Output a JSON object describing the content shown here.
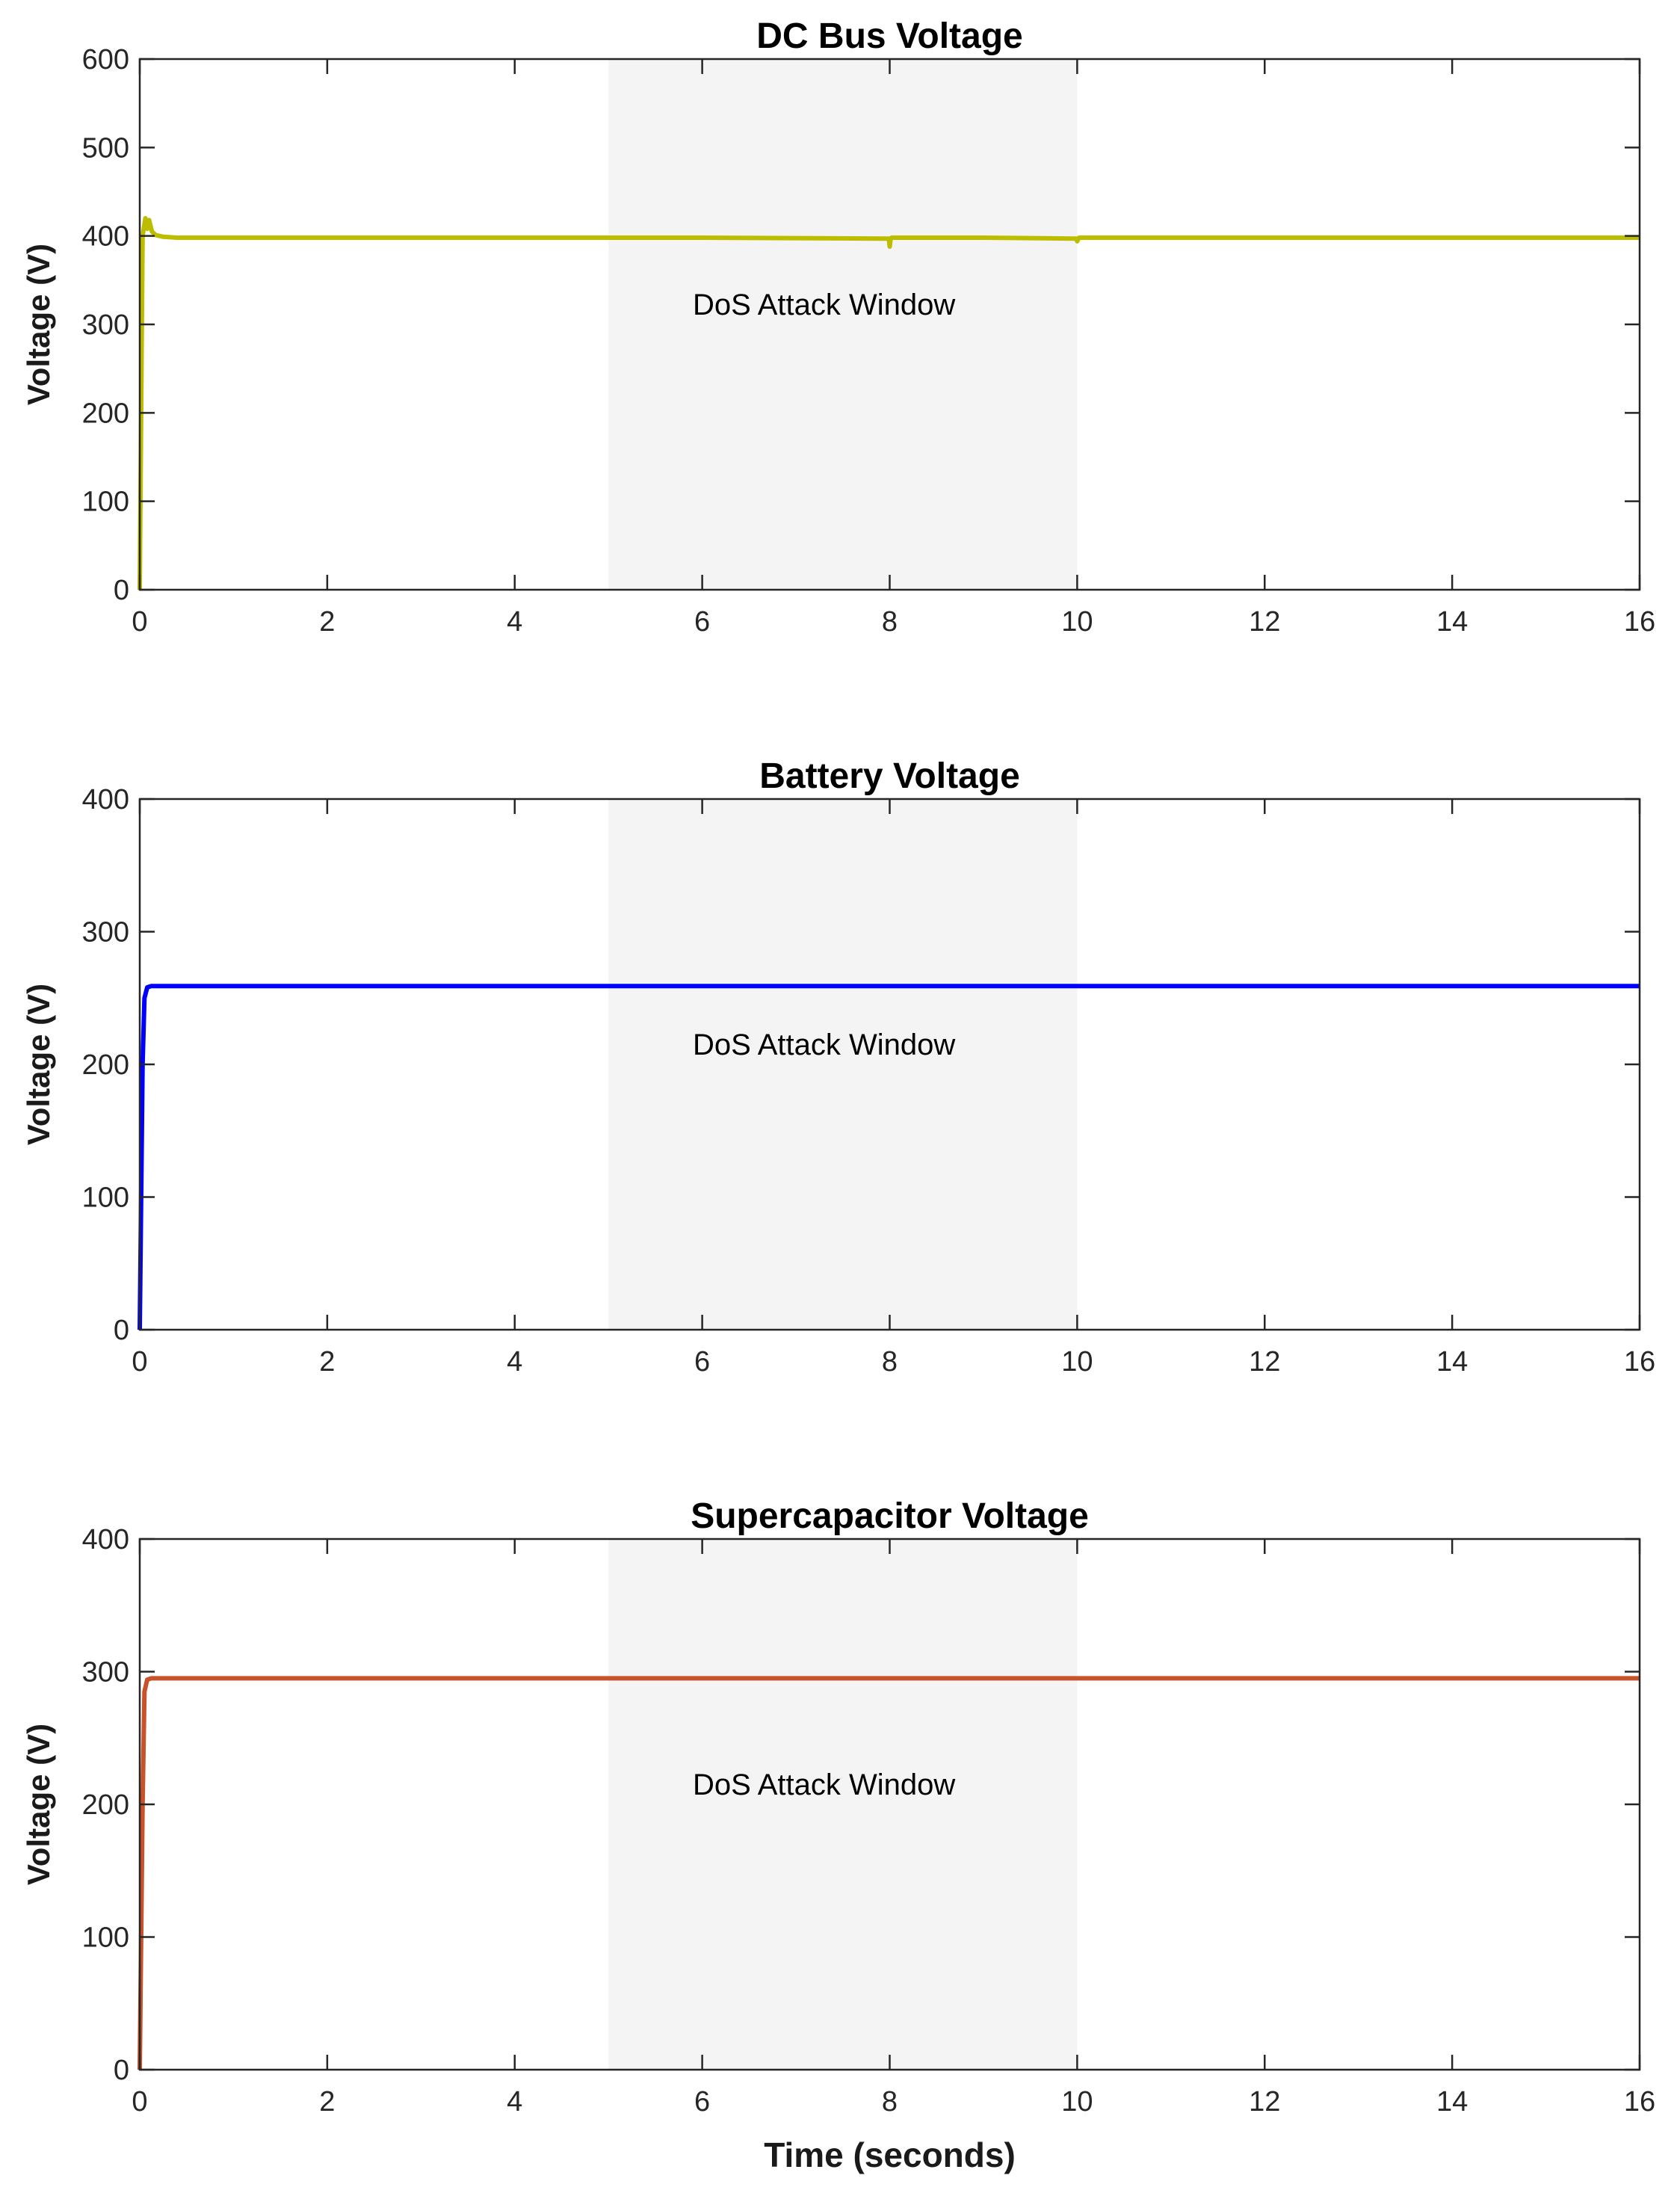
{
  "chart_data": [
    {
      "type": "line",
      "title": "DC Bus Voltage",
      "xlabel": "",
      "ylabel": "Voltage (V)",
      "xlim": [
        0,
        16
      ],
      "ylim": [
        0,
        600
      ],
      "xticks": [
        0,
        2,
        4,
        6,
        8,
        10,
        12,
        14,
        16
      ],
      "yticks": [
        0,
        100,
        200,
        300,
        400,
        500,
        600
      ],
      "grid": false,
      "shaded_region": {
        "x": [
          5,
          10
        ],
        "label": "DoS Attack Window",
        "color": "#f4f4f4"
      },
      "series": [
        {
          "color": "#bdbd00",
          "x": [
            0,
            0.03,
            0.06,
            0.08,
            0.1,
            0.13,
            0.17,
            0.25,
            0.4,
            1,
            2,
            4,
            6,
            7.99,
            8,
            8.01,
            8.02,
            9,
            9.99,
            10,
            10.02,
            12,
            14,
            16
          ],
          "y": [
            0,
            400,
            420,
            408,
            418,
            405,
            401,
            399,
            398,
            398,
            398,
            398,
            398,
            397,
            388,
            397,
            398,
            398,
            397,
            394,
            398,
            398,
            398,
            398
          ]
        }
      ]
    },
    {
      "type": "line",
      "title": "Battery Voltage",
      "xlabel": "",
      "ylabel": "Voltage (V)",
      "xlim": [
        0,
        16
      ],
      "ylim": [
        0,
        400
      ],
      "xticks": [
        0,
        2,
        4,
        6,
        8,
        10,
        12,
        14,
        16
      ],
      "yticks": [
        0,
        100,
        200,
        300,
        400
      ],
      "grid": false,
      "shaded_region": {
        "x": [
          5,
          10
        ],
        "label": "DoS Attack Window",
        "color": "#f4f4f4"
      },
      "series": [
        {
          "color": "#0000ff",
          "x": [
            0,
            0.03,
            0.05,
            0.08,
            0.12,
            1,
            4,
            8,
            12,
            16
          ],
          "y": [
            0,
            200,
            250,
            258,
            259,
            259,
            259,
            259,
            259,
            259
          ]
        }
      ]
    },
    {
      "type": "line",
      "title": "Supercapacitor Voltage",
      "xlabel": "Time (seconds)",
      "ylabel": "Voltage (V)",
      "xlim": [
        0,
        16
      ],
      "ylim": [
        0,
        400
      ],
      "xticks": [
        0,
        2,
        4,
        6,
        8,
        10,
        12,
        14,
        16
      ],
      "yticks": [
        0,
        100,
        200,
        300,
        400
      ],
      "grid": false,
      "shaded_region": {
        "x": [
          5,
          10
        ],
        "label": "DoS Attack Window",
        "color": "#f4f4f4"
      },
      "series": [
        {
          "color": "#c8522a",
          "x": [
            0,
            0.03,
            0.05,
            0.08,
            0.12,
            1,
            4,
            8,
            12,
            16
          ],
          "y": [
            0,
            200,
            285,
            294,
            295,
            295,
            295,
            295,
            295,
            295
          ]
        }
      ]
    }
  ]
}
